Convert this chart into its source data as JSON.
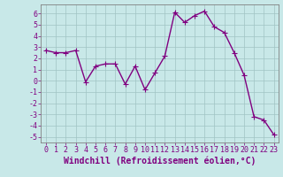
{
  "x": [
    0,
    1,
    2,
    3,
    4,
    5,
    6,
    7,
    8,
    9,
    10,
    11,
    12,
    13,
    14,
    15,
    16,
    17,
    18,
    19,
    20,
    21,
    22,
    23
  ],
  "y": [
    2.7,
    2.5,
    2.5,
    2.7,
    -0.1,
    1.3,
    1.5,
    1.5,
    -0.3,
    1.3,
    -0.8,
    0.7,
    2.2,
    6.1,
    5.2,
    5.8,
    6.2,
    4.8,
    4.3,
    2.5,
    0.5,
    -3.2,
    -3.5,
    -4.8
  ],
  "line_color": "#800080",
  "marker_color": "#800080",
  "bg_color": "#c8e8e8",
  "grid_color": "#a0c4c4",
  "xlabel": "Windchill (Refroidissement éolien,°C)",
  "ylim": [
    -5.5,
    6.8
  ],
  "xlim": [
    -0.5,
    23.5
  ],
  "yticks": [
    -5,
    -4,
    -3,
    -2,
    -1,
    0,
    1,
    2,
    3,
    4,
    5,
    6
  ],
  "xticks": [
    0,
    1,
    2,
    3,
    4,
    5,
    6,
    7,
    8,
    9,
    10,
    11,
    12,
    13,
    14,
    15,
    16,
    17,
    18,
    19,
    20,
    21,
    22,
    23
  ],
  "xlabel_fontsize": 7.0,
  "tick_fontsize": 6.0,
  "line_width": 1.0,
  "marker_size": 2.2
}
